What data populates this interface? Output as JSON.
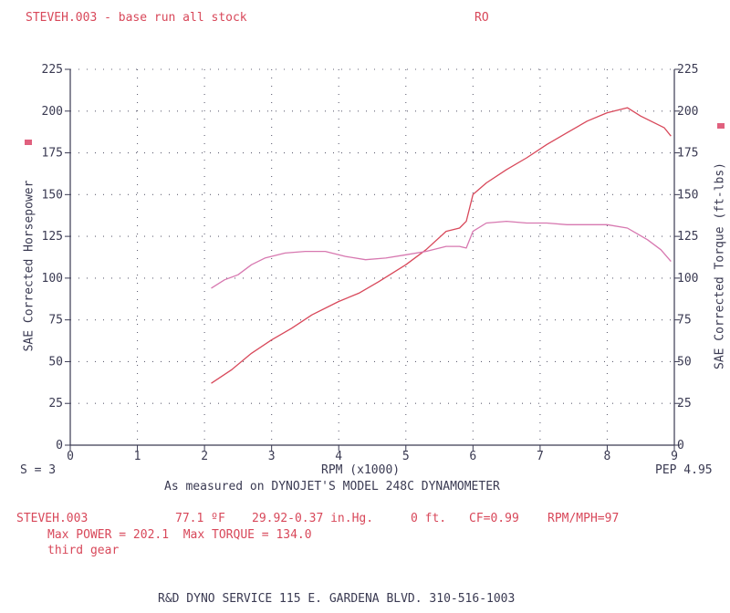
{
  "header": {
    "file_title": "STEVEH.003 - base run all stock",
    "code": "RO"
  },
  "left_footer": "S = 3",
  "right_footer": "PEP 4.95",
  "measured_note": "As measured on DYNOJET'S MODEL 248C DYNAMOMETER",
  "run_info": {
    "file": "STEVEH.003",
    "temp": "77.1 ºF",
    "baro": "29.92-0.37 in.Hg.",
    "elev": "0 ft.",
    "cf": "CF=0.99",
    "rpm_mph": "RPM/MPH=97",
    "max_line": "Max POWER = 202.1  Max TORQUE = 134.0",
    "gear": "third gear"
  },
  "shop_footer": "R&D DYNO SERVICE 115 E. GARDENA BLVD. 310-516-1003",
  "colors": {
    "hp": "#d8485a",
    "torque": "#d778b0",
    "axis": "#3a3a52",
    "grid": "#3a3a52"
  },
  "chart_data": {
    "type": "line",
    "xlabel": "RPM (x1000)",
    "ylabel": "SAE Corrected Horsepower",
    "y2label": "SAE Corrected Torque (ft-lbs)",
    "xlim": [
      0,
      9
    ],
    "ylim": [
      0,
      225
    ],
    "y2lim": [
      0,
      225
    ],
    "xticks": [
      "0",
      "1",
      "2",
      "3",
      "4",
      "5",
      "6",
      "7",
      "8",
      "9"
    ],
    "yticks": [
      "0",
      "25",
      "50",
      "75",
      "100",
      "125",
      "150",
      "175",
      "200",
      "225"
    ],
    "grid": true,
    "series": [
      {
        "key": "hp",
        "x": [
          2.1,
          2.4,
          2.7,
          3.0,
          3.3,
          3.6,
          4.0,
          4.3,
          4.6,
          5.0,
          5.3,
          5.6,
          5.8,
          5.9,
          6.0,
          6.2,
          6.5,
          6.8,
          7.1,
          7.4,
          7.7,
          8.0,
          8.3,
          8.5,
          8.7,
          8.85,
          8.95
        ],
        "values": [
          37,
          45,
          55,
          63,
          70,
          78,
          86,
          91,
          98,
          108,
          117,
          128,
          130,
          134,
          150,
          157,
          165,
          172,
          180,
          187,
          194,
          199,
          202,
          197,
          193,
          190,
          185
        ]
      },
      {
        "key": "torque",
        "x": [
          2.1,
          2.3,
          2.5,
          2.7,
          2.9,
          3.2,
          3.5,
          3.8,
          4.1,
          4.4,
          4.7,
          5.0,
          5.3,
          5.6,
          5.8,
          5.9,
          6.0,
          6.2,
          6.5,
          6.8,
          7.1,
          7.4,
          7.7,
          8.0,
          8.3,
          8.6,
          8.8,
          8.95
        ],
        "values": [
          94,
          99,
          102,
          108,
          112,
          115,
          116,
          116,
          113,
          111,
          112,
          114,
          116,
          119,
          119,
          118,
          128,
          133,
          134,
          133,
          133,
          132,
          132,
          132,
          130,
          123,
          117,
          110
        ]
      }
    ]
  }
}
